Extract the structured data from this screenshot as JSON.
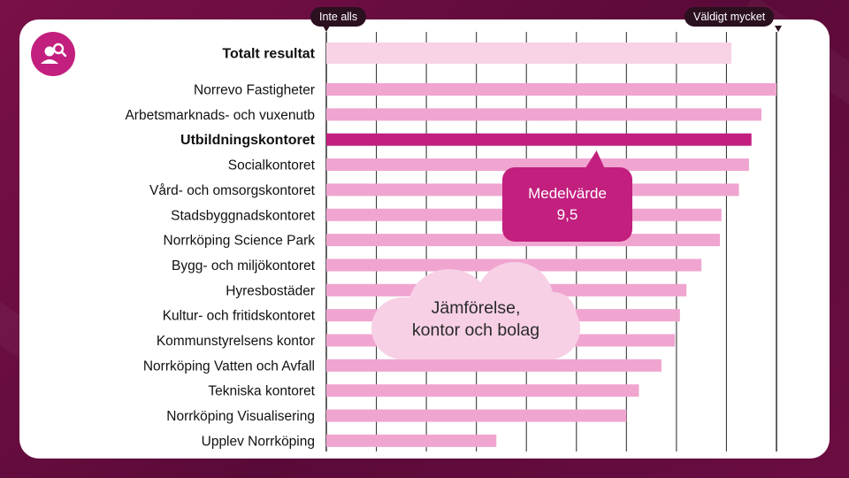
{
  "scale_labels": {
    "left": "Inte alls",
    "right": "Väldigt mycket"
  },
  "callout": {
    "title": "Medelvärde",
    "value": "9,5"
  },
  "cloud_text": [
    "Jämförelse,",
    "kontor och bolag"
  ],
  "icon": "people-search-icon",
  "colors": {
    "accent": "#c21f7e",
    "bar": "#f0a5d0",
    "total_bar": "#f8d3e6",
    "grid": "#3a3a3a"
  },
  "chart_data": {
    "type": "bar",
    "orientation": "horizontal",
    "xlim": [
      1,
      10
    ],
    "highlight": "Utbildningskontoret",
    "categories": [
      "Totalt resultat",
      "Norrevo Fastigheter",
      "Arbetsmarknads- och vuxenutb",
      "Utbildningskontoret",
      "Socialkontoret",
      "Vård- och omsorgskontoret",
      "Stadsbyggnadskontoret",
      "Norrköping Science Park",
      "Bygg- och miljökontoret",
      "Hyresbostäder",
      "Kultur- och fritidskontoret",
      "Kommunstyrelsens kontor",
      "Norrköping Vatten och Avfall",
      "Tekniska kontoret",
      "Norrköping Visualisering",
      "Upplev Norrköping"
    ],
    "values": [
      9.1,
      10.0,
      9.7,
      9.5,
      9.45,
      9.25,
      8.9,
      8.87,
      8.5,
      8.2,
      8.07,
      7.97,
      7.7,
      7.25,
      7.0,
      4.4
    ]
  }
}
